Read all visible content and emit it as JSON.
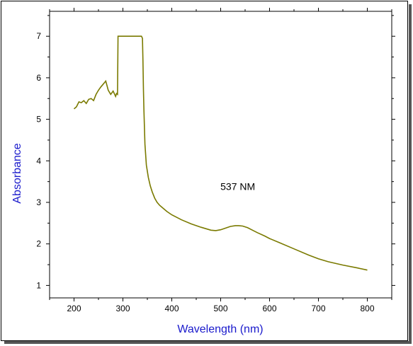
{
  "chart_data": {
    "type": "line",
    "title": "",
    "xlabel": "Wavelength (nm)",
    "ylabel": "Absorbance",
    "xlim": [
      150,
      850
    ],
    "ylim": [
      0.7,
      7.6
    ],
    "xticks": [
      200,
      300,
      400,
      500,
      600,
      700,
      800
    ],
    "yticks": [
      1,
      2,
      3,
      4,
      5,
      6,
      7
    ],
    "grid": false,
    "line_color": "#7a7a00",
    "axis_title_color": "#1a1acc",
    "annotations": [
      {
        "text": "537 NM",
        "x": 535,
        "y": 3.3
      }
    ],
    "series": [
      {
        "x": [
          200,
          205,
          210,
          215,
          220,
          225,
          230,
          235,
          240,
          245,
          250,
          255,
          260,
          265,
          270,
          275,
          280,
          285,
          287,
          289,
          290,
          300,
          310,
          320,
          330,
          338,
          340,
          341,
          342,
          343,
          345,
          348,
          352,
          356,
          360,
          365,
          370,
          375,
          380,
          390,
          400,
          420,
          440,
          460,
          480,
          490,
          500,
          510,
          520,
          530,
          537,
          545,
          555,
          565,
          575,
          590,
          600,
          620,
          650,
          680,
          700,
          720,
          750,
          780,
          800
        ],
        "y": [
          5.25,
          5.3,
          5.42,
          5.4,
          5.45,
          5.38,
          5.48,
          5.5,
          5.45,
          5.6,
          5.7,
          5.78,
          5.85,
          5.92,
          5.7,
          5.6,
          5.68,
          5.55,
          5.62,
          5.6,
          7.0,
          7.0,
          7.0,
          7.0,
          7.0,
          7.0,
          6.95,
          6.4,
          5.7,
          5.2,
          4.4,
          3.9,
          3.6,
          3.4,
          3.25,
          3.1,
          3.0,
          2.93,
          2.88,
          2.78,
          2.7,
          2.58,
          2.48,
          2.4,
          2.33,
          2.32,
          2.34,
          2.38,
          2.42,
          2.44,
          2.44,
          2.43,
          2.39,
          2.33,
          2.27,
          2.19,
          2.13,
          2.03,
          1.88,
          1.73,
          1.64,
          1.57,
          1.49,
          1.42,
          1.37
        ]
      }
    ]
  }
}
